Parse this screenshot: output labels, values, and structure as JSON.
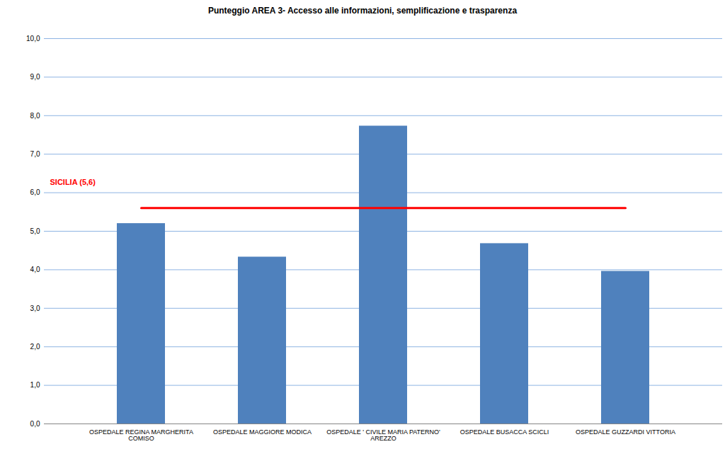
{
  "chart_data": {
    "type": "bar",
    "title": "Punteggio AREA 3- Accesso alle informazioni, semplificazione e trasparenza",
    "categories": [
      "OSPEDALE REGINA MARGHERITA  COMISO",
      "OSPEDALE MAGGIORE MODICA",
      "OSPEDALE ' CIVILE MARIA PATERNO' AREZZO",
      "OSPEDALE BUSACCA SCICLI",
      "OSPEDALE GUZZARDI VITTORIA"
    ],
    "values": [
      5.2,
      4.33,
      7.73,
      4.68,
      3.96
    ],
    "color": "#4f81bd",
    "ylim": [
      0,
      10
    ],
    "yticks": [
      {
        "value": 0,
        "label": "0,0"
      },
      {
        "value": 1,
        "label": "1,0"
      },
      {
        "value": 2,
        "label": "2,0"
      },
      {
        "value": 3,
        "label": "3,0"
      },
      {
        "value": 4,
        "label": "4,0"
      },
      {
        "value": 5,
        "label": "5,0"
      },
      {
        "value": 6,
        "label": "6,0"
      },
      {
        "value": 7,
        "label": "7,0"
      },
      {
        "value": 8,
        "label": "8,0"
      },
      {
        "value": 9,
        "label": "9,0"
      },
      {
        "value": 10,
        "label": "10,0"
      }
    ],
    "grid": true,
    "reference": {
      "label": "SICILIA (5,6)",
      "value": 5.6,
      "color": "#ff0000"
    }
  }
}
